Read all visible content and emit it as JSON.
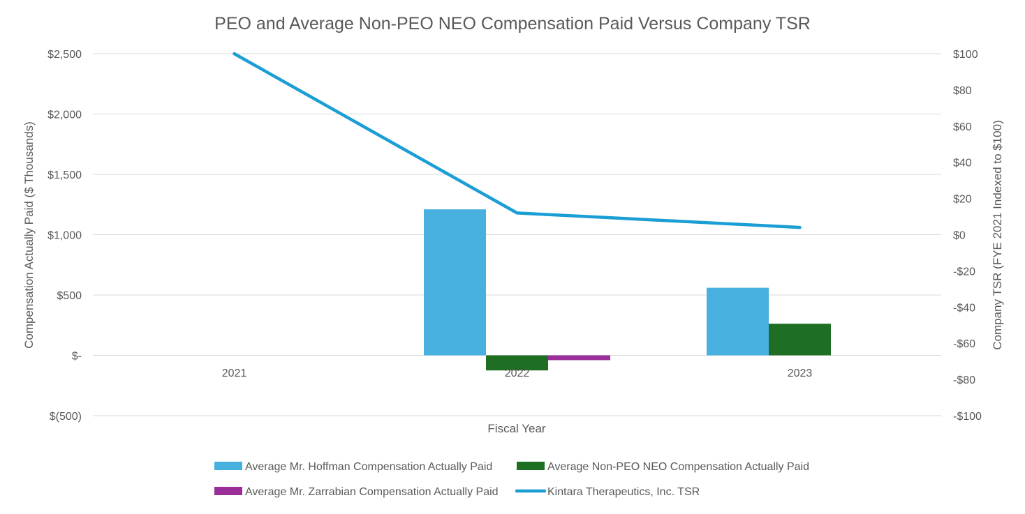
{
  "chart_data": {
    "type": "bar",
    "title": "PEO and Average Non-PEO NEO Compensation Paid Versus Company TSR",
    "xlabel": "Fiscal Year",
    "ylabel": "Compensation Actually Paid ($ Thousands)",
    "y2label": "Company TSR (FYE 2021 Indexed to $100)",
    "categories": [
      "2021",
      "2022",
      "2023"
    ],
    "ylim": [
      -500,
      2500
    ],
    "y2lim": [
      -100,
      100
    ],
    "yticks": [
      {
        "value": 2500,
        "label": "$2,500"
      },
      {
        "value": 2000,
        "label": "$2,000"
      },
      {
        "value": 1500,
        "label": "$1,500"
      },
      {
        "value": 1000,
        "label": "$1,000"
      },
      {
        "value": 500,
        "label": "$500"
      },
      {
        "value": 0,
        "label": "$-"
      },
      {
        "value": -500,
        "label": "$(500)"
      }
    ],
    "y2ticks": [
      {
        "value": 100,
        "label": "$100"
      },
      {
        "value": 80,
        "label": "$80"
      },
      {
        "value": 60,
        "label": "$60"
      },
      {
        "value": 40,
        "label": "$40"
      },
      {
        "value": 20,
        "label": "$20"
      },
      {
        "value": 0,
        "label": "$0"
      },
      {
        "value": -20,
        "label": "-$20"
      },
      {
        "value": -40,
        "label": "-$40"
      },
      {
        "value": -60,
        "label": "-$60"
      },
      {
        "value": -80,
        "label": "-$80"
      },
      {
        "value": -100,
        "label": "-$100"
      }
    ],
    "series": [
      {
        "name": "Average Mr. Hoffman Compensation Actually Paid",
        "kind": "bar",
        "axis": "left",
        "color": "#47b0de",
        "values": [
          null,
          1210,
          560
        ]
      },
      {
        "name": "Average Non-PEO NEO Compensation Actually Paid",
        "kind": "bar",
        "axis": "left",
        "color": "#1e6e24",
        "values": [
          null,
          -125,
          262
        ]
      },
      {
        "name": "Average Mr. Zarrabian Compensation Actually Paid",
        "kind": "bar",
        "axis": "left",
        "color": "#9b2f9a",
        "values": [
          null,
          -40,
          null
        ]
      },
      {
        "name": "Kintara Therapeutics, Inc. TSR",
        "kind": "line",
        "axis": "right",
        "color": "#1a9ed4",
        "values": [
          100,
          12,
          4
        ]
      }
    ],
    "legend_position": "bottom",
    "grid": true
  }
}
